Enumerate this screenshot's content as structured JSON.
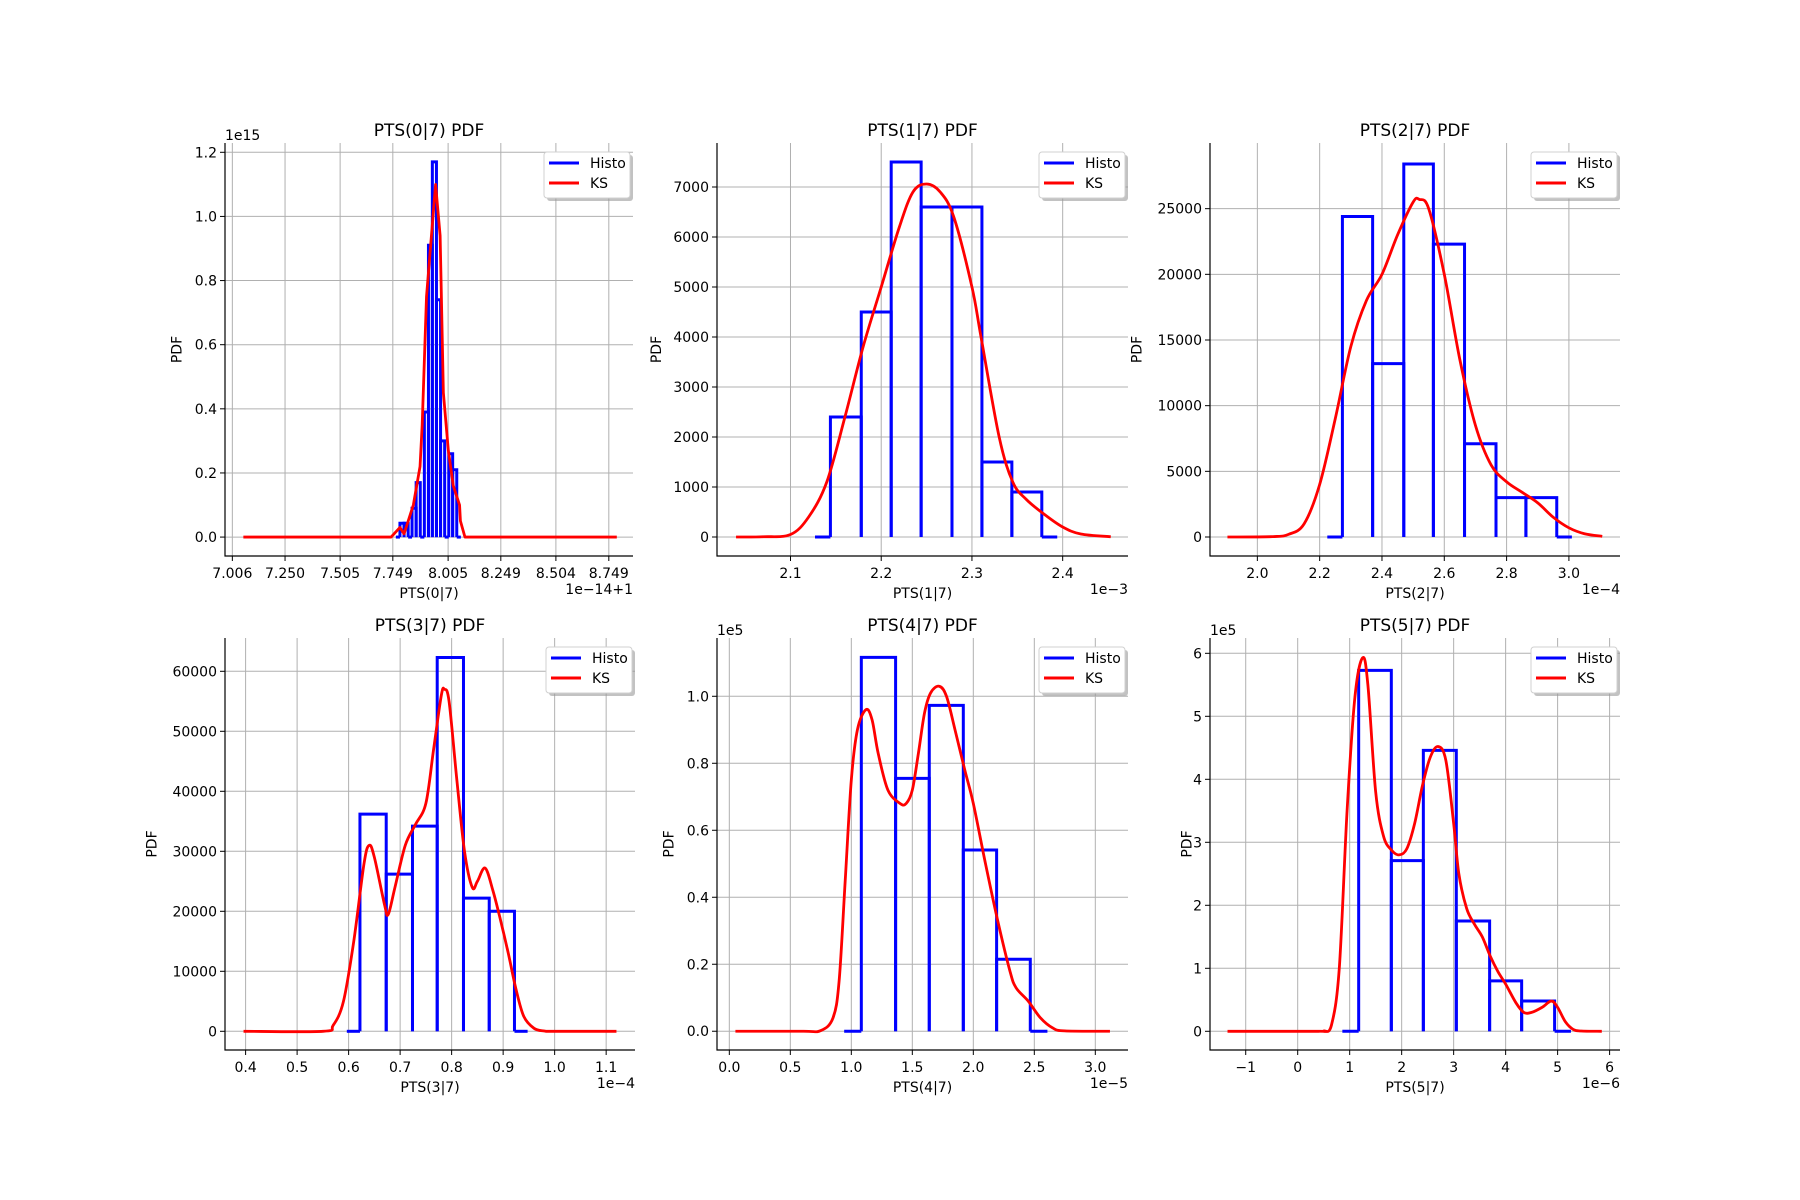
{
  "colors": {
    "histogram": "#0000ff",
    "ks": "#ff0000",
    "grid": "#b0b0b0"
  },
  "chart_data": [
    {
      "type": "line",
      "title": "PTS(0|7) PDF",
      "xlabel": "PTS(0|7)",
      "ylabel": "PDF",
      "x_offset_label": "1e−14+1",
      "y_offset_label": "1e15",
      "xlim": [
        6.972,
        8.861
      ],
      "ylim": [
        -0.059,
        1.229
      ],
      "grid": true,
      "legend_placement": "top-right",
      "xticks": [
        7.006,
        7.25,
        7.505,
        7.749,
        8.005,
        8.249,
        8.504,
        8.749
      ],
      "xtick_labels": [
        "7.006",
        "7.250",
        "7.505",
        "7.749",
        "8.005",
        "8.249",
        "8.504",
        "8.749"
      ],
      "yticks": [
        0,
        0.2,
        0.4,
        0.6,
        0.8,
        1.0,
        1.2
      ],
      "ytick_labels": [
        "0.0",
        "0.2",
        "0.4",
        "0.6",
        "0.8",
        "1.0",
        "1.2"
      ],
      "series": [
        {
          "name": "Histo",
          "kind": "histogram",
          "edges": [
            7.782,
            7.801,
            7.82,
            7.838,
            7.857,
            7.876,
            7.895,
            7.914,
            7.932,
            7.951,
            7.97,
            7.989,
            8.008,
            8.026,
            8.045
          ],
          "values": [
            0.043,
            0.043,
            0,
            0.09,
            0.17,
            0,
            0.39,
            0.91,
            1.17,
            0.74,
            0.3,
            0,
            0.26,
            0.21
          ]
        },
        {
          "name": "KS",
          "kind": "line",
          "points": [
            [
              7.057,
              0
            ],
            [
              7.741,
              0
            ],
            [
              7.782,
              0.03
            ],
            [
              7.801,
              0.01
            ],
            [
              7.844,
              0.1
            ],
            [
              7.875,
              0.22
            ],
            [
              7.885,
              0.35
            ],
            [
              7.905,
              0.75
            ],
            [
              7.929,
              0.95
            ],
            [
              7.947,
              1.1
            ],
            [
              7.968,
              0.94
            ],
            [
              7.983,
              0.45
            ],
            [
              8.006,
              0.27
            ],
            [
              8.029,
              0.16
            ],
            [
              8.058,
              0.1
            ],
            [
              8.062,
              0.05
            ],
            [
              8.083,
              0
            ],
            [
              8.786,
              0
            ]
          ]
        }
      ]
    },
    {
      "type": "line",
      "title": "PTS(1|7) PDF",
      "xlabel": "PTS(1|7)",
      "ylabel": "PDF",
      "x_offset_label": "1e−3",
      "y_offset_label": "",
      "xlim": [
        2.019,
        2.472
      ],
      "ylim": [
        -380,
        7880
      ],
      "grid": true,
      "legend_placement": "top-right",
      "xticks": [
        2.1,
        2.2,
        2.3,
        2.4
      ],
      "xtick_labels": [
        "2.1",
        "2.2",
        "2.3",
        "2.4"
      ],
      "yticks": [
        0,
        1000,
        2000,
        3000,
        4000,
        5000,
        6000,
        7000
      ],
      "ytick_labels": [
        "0",
        "1000",
        "2000",
        "3000",
        "4000",
        "5000",
        "6000",
        "7000"
      ],
      "series": [
        {
          "name": "Histo",
          "kind": "histogram",
          "edges": [
            2.144,
            2.178,
            2.211,
            2.244,
            2.278,
            2.311,
            2.344,
            2.377
          ],
          "values": [
            2400,
            4500,
            7500,
            6600,
            6600,
            1500,
            900
          ]
        },
        {
          "name": "KS",
          "kind": "line",
          "points": [
            [
              2.04,
              0
            ],
            [
              2.07,
              5
            ],
            [
              2.1,
              50
            ],
            [
              2.12,
              400
            ],
            [
              2.14,
              1100
            ],
            [
              2.16,
              2400
            ],
            [
              2.18,
              3800
            ],
            [
              2.2,
              5000
            ],
            [
              2.22,
              6200
            ],
            [
              2.235,
              6900
            ],
            [
              2.25,
              7060
            ],
            [
              2.265,
              6900
            ],
            [
              2.28,
              6400
            ],
            [
              2.3,
              5000
            ],
            [
              2.31,
              4000
            ],
            [
              2.33,
              2000
            ],
            [
              2.345,
              1100
            ],
            [
              2.36,
              750
            ],
            [
              2.38,
              450
            ],
            [
              2.4,
              200
            ],
            [
              2.42,
              60
            ],
            [
              2.453,
              5
            ]
          ]
        }
      ]
    },
    {
      "type": "line",
      "title": "PTS(2|7) PDF",
      "xlabel": "PTS(2|7)",
      "ylabel": "PDF",
      "x_offset_label": "1e−4",
      "y_offset_label": "",
      "xlim": [
        1.848,
        3.164
      ],
      "ylim": [
        -1447,
        30000
      ],
      "grid": true,
      "legend_placement": "top-right",
      "xticks": [
        2.0,
        2.2,
        2.4,
        2.6,
        2.8,
        3.0
      ],
      "xtick_labels": [
        "2.0",
        "2.2",
        "2.4",
        "2.6",
        "2.8",
        "3.0"
      ],
      "yticks": [
        0,
        5000,
        10000,
        15000,
        20000,
        25000
      ],
      "ytick_labels": [
        "0",
        "5000",
        "10000",
        "15000",
        "20000",
        "25000"
      ],
      "series": [
        {
          "name": "Histo",
          "kind": "histogram",
          "edges": [
            2.273,
            2.37,
            2.47,
            2.565,
            2.665,
            2.766,
            2.862,
            2.961
          ],
          "values": [
            24400,
            13200,
            28400,
            22300,
            7100,
            3000,
            3000
          ]
        },
        {
          "name": "KS",
          "kind": "line",
          "points": [
            [
              1.904,
              0
            ],
            [
              2.05,
              30
            ],
            [
              2.1,
              200
            ],
            [
              2.15,
              1000
            ],
            [
              2.2,
              4000
            ],
            [
              2.25,
              9000
            ],
            [
              2.3,
              14500
            ],
            [
              2.35,
              18000
            ],
            [
              2.4,
              20000
            ],
            [
              2.45,
              23000
            ],
            [
              2.5,
              25500
            ],
            [
              2.52,
              25700
            ],
            [
              2.55,
              25000
            ],
            [
              2.6,
              20000
            ],
            [
              2.65,
              13500
            ],
            [
              2.7,
              8500
            ],
            [
              2.75,
              5500
            ],
            [
              2.8,
              4200
            ],
            [
              2.85,
              3400
            ],
            [
              2.9,
              2600
            ],
            [
              2.95,
              1500
            ],
            [
              3.0,
              700
            ],
            [
              3.05,
              250
            ],
            [
              3.107,
              50
            ]
          ]
        }
      ]
    },
    {
      "type": "line",
      "title": "PTS(3|7) PDF",
      "xlabel": "PTS(3|7)",
      "ylabel": "PDF",
      "x_offset_label": "1e−4",
      "y_offset_label": "",
      "xlim": [
        0.36,
        1.156
      ],
      "ylim": [
        -3117,
        65550
      ],
      "grid": true,
      "legend_placement": "top-right",
      "xticks": [
        0.4,
        0.5,
        0.6,
        0.7,
        0.8,
        0.9,
        1.0,
        1.1
      ],
      "xtick_labels": [
        "0.4",
        "0.5",
        "0.6",
        "0.7",
        "0.8",
        "0.9",
        "1.0",
        "1.1"
      ],
      "yticks": [
        0,
        10000,
        20000,
        30000,
        40000,
        50000,
        60000
      ],
      "ytick_labels": [
        "0",
        "10000",
        "20000",
        "30000",
        "40000",
        "50000",
        "60000"
      ],
      "series": [
        {
          "name": "Histo",
          "kind": "histogram",
          "edges": [
            0.622,
            0.673,
            0.724,
            0.772,
            0.823,
            0.873,
            0.922
          ],
          "values": [
            36200,
            26200,
            34200,
            62300,
            22200,
            20000
          ]
        },
        {
          "name": "KS",
          "kind": "line",
          "points": [
            [
              0.396,
              0
            ],
            [
              0.55,
              0
            ],
            [
              0.57,
              1000
            ],
            [
              0.59,
              5000
            ],
            [
              0.61,
              15000
            ],
            [
              0.63,
              28000
            ],
            [
              0.64,
              31000
            ],
            [
              0.65,
              29000
            ],
            [
              0.67,
              21000
            ],
            [
              0.677,
              19500
            ],
            [
              0.69,
              24000
            ],
            [
              0.71,
              31000
            ],
            [
              0.73,
              34500
            ],
            [
              0.75,
              38000
            ],
            [
              0.765,
              47000
            ],
            [
              0.78,
              56000
            ],
            [
              0.786,
              57000
            ],
            [
              0.795,
              55000
            ],
            [
              0.81,
              42000
            ],
            [
              0.825,
              30000
            ],
            [
              0.84,
              24000
            ],
            [
              0.85,
              25000
            ],
            [
              0.865,
              27200
            ],
            [
              0.88,
              23500
            ],
            [
              0.895,
              18500
            ],
            [
              0.91,
              13000
            ],
            [
              0.925,
              7000
            ],
            [
              0.94,
              2500
            ],
            [
              0.96,
              500
            ],
            [
              0.98,
              50
            ],
            [
              1.0,
              0
            ],
            [
              1.12,
              0
            ]
          ]
        }
      ]
    },
    {
      "type": "line",
      "title": "PTS(4|7) PDF",
      "xlabel": "PTS(4|7)",
      "ylabel": "PDF",
      "x_offset_label": "1e−5",
      "y_offset_label": "1e5",
      "xlim": [
        -0.101,
        3.268
      ],
      "ylim": [
        -0.056,
        1.174
      ],
      "grid": true,
      "legend_placement": "top-right",
      "xticks": [
        0.0,
        0.5,
        1.0,
        1.5,
        2.0,
        2.5,
        3.0
      ],
      "xtick_labels": [
        "0.0",
        "0.5",
        "1.0",
        "1.5",
        "2.0",
        "2.5",
        "3.0"
      ],
      "yticks": [
        0,
        0.2,
        0.4,
        0.6,
        0.8,
        1.0
      ],
      "ytick_labels": [
        "0.0",
        "0.2",
        "0.4",
        "0.6",
        "0.8",
        "1.0"
      ],
      "series": [
        {
          "name": "Histo",
          "kind": "histogram",
          "edges": [
            1.082,
            1.363,
            1.639,
            1.918,
            2.191,
            2.467
          ],
          "values": [
            1.116,
            0.755,
            0.973,
            0.541,
            0.215
          ]
        },
        {
          "name": "KS",
          "kind": "line",
          "points": [
            [
              0.05,
              0
            ],
            [
              0.6,
              0
            ],
            [
              0.75,
              0.002
            ],
            [
              0.85,
              0.04
            ],
            [
              0.9,
              0.15
            ],
            [
              0.95,
              0.45
            ],
            [
              1.0,
              0.75
            ],
            [
              1.05,
              0.9
            ],
            [
              1.12,
              0.96
            ],
            [
              1.17,
              0.93
            ],
            [
              1.22,
              0.83
            ],
            [
              1.3,
              0.72
            ],
            [
              1.4,
              0.68
            ],
            [
              1.45,
              0.68
            ],
            [
              1.5,
              0.72
            ],
            [
              1.55,
              0.83
            ],
            [
              1.6,
              0.95
            ],
            [
              1.65,
              1.01
            ],
            [
              1.72,
              1.03
            ],
            [
              1.78,
              1.0
            ],
            [
              1.85,
              0.9
            ],
            [
              1.93,
              0.78
            ],
            [
              2.0,
              0.68
            ],
            [
              2.1,
              0.5
            ],
            [
              2.2,
              0.33
            ],
            [
              2.3,
              0.18
            ],
            [
              2.35,
              0.13
            ],
            [
              2.45,
              0.09
            ],
            [
              2.55,
              0.04
            ],
            [
              2.65,
              0.01
            ],
            [
              2.75,
              0.001
            ],
            [
              3.12,
              0
            ]
          ]
        }
      ]
    },
    {
      "type": "line",
      "title": "PTS(5|7) PDF",
      "xlabel": "PTS(5|7)",
      "ylabel": "PDF",
      "x_offset_label": "1e−6",
      "y_offset_label": "1e5",
      "xlim": [
        -1.687,
        6.2
      ],
      "ylim": [
        -0.297,
        6.243
      ],
      "grid": true,
      "legend_placement": "top-right",
      "xticks": [
        -1,
        0,
        1,
        2,
        3,
        4,
        5,
        6
      ],
      "xtick_labels": [
        "−1",
        "0",
        "1",
        "2",
        "3",
        "4",
        "5",
        "6"
      ],
      "yticks": [
        0,
        1,
        2,
        3,
        4,
        5,
        6
      ],
      "ytick_labels": [
        "0",
        "1",
        "2",
        "3",
        "4",
        "5",
        "6"
      ],
      "series": [
        {
          "name": "Histo",
          "kind": "histogram",
          "edges": [
            1.173,
            1.801,
            2.417,
            3.051,
            3.692,
            4.308,
            4.942
          ],
          "values": [
            5.73,
            2.71,
            4.46,
            1.75,
            0.8,
            0.48
          ]
        },
        {
          "name": "KS",
          "kind": "line",
          "points": [
            [
              -1.35,
              0
            ],
            [
              0.4,
              0
            ],
            [
              0.5,
              0.005
            ],
            [
              0.65,
              0.1
            ],
            [
              0.8,
              1.0
            ],
            [
              0.95,
              3.5
            ],
            [
              1.1,
              5.3
            ],
            [
              1.25,
              5.93
            ],
            [
              1.35,
              5.5
            ],
            [
              1.5,
              3.8
            ],
            [
              1.65,
              3.1
            ],
            [
              1.8,
              2.88
            ],
            [
              1.95,
              2.8
            ],
            [
              2.1,
              2.9
            ],
            [
              2.25,
              3.3
            ],
            [
              2.4,
              3.9
            ],
            [
              2.55,
              4.35
            ],
            [
              2.7,
              4.52
            ],
            [
              2.85,
              4.3
            ],
            [
              3.0,
              3.3
            ],
            [
              3.1,
              2.5
            ],
            [
              3.25,
              1.95
            ],
            [
              3.4,
              1.7
            ],
            [
              3.55,
              1.5
            ],
            [
              3.7,
              1.2
            ],
            [
              3.85,
              0.95
            ],
            [
              4.0,
              0.75
            ],
            [
              4.2,
              0.45
            ],
            [
              4.35,
              0.3
            ],
            [
              4.5,
              0.3
            ],
            [
              4.7,
              0.38
            ],
            [
              4.88,
              0.48
            ],
            [
              5.0,
              0.38
            ],
            [
              5.15,
              0.15
            ],
            [
              5.3,
              0.03
            ],
            [
              5.45,
              0.005
            ],
            [
              5.85,
              0
            ]
          ]
        }
      ]
    }
  ]
}
